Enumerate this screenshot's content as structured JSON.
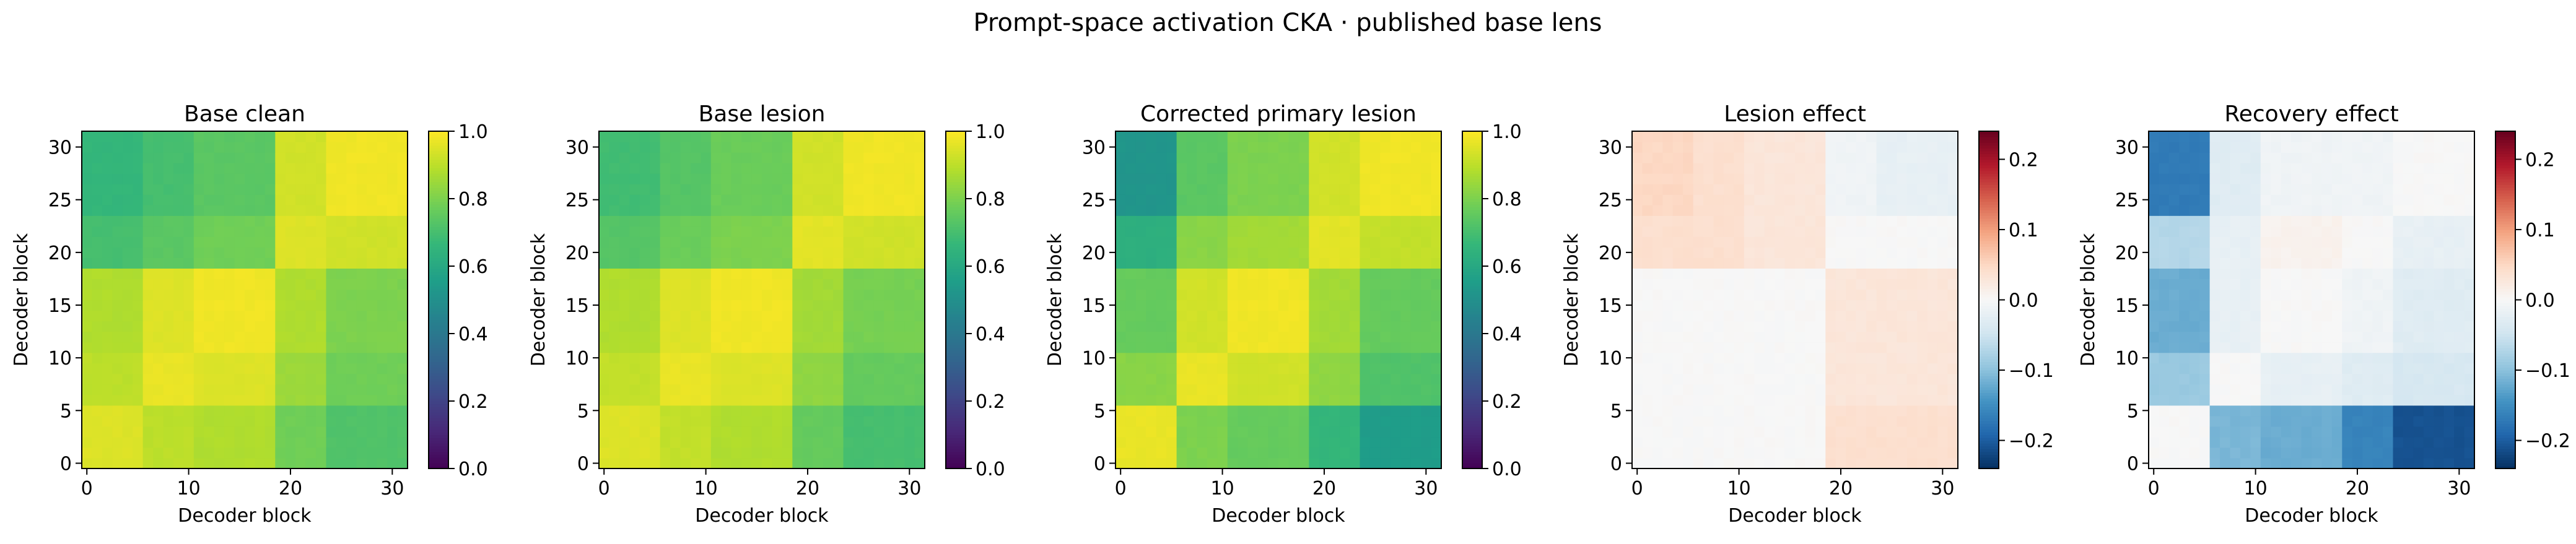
{
  "figure": {
    "suptitle": "Prompt-space activation CKA · published base lens"
  },
  "colormaps": {
    "viridis": [
      "#440154",
      "#482878",
      "#3e4a89",
      "#31688e",
      "#26828e",
      "#1f9e89",
      "#35b779",
      "#6ece58",
      "#b5de2b",
      "#fde725"
    ],
    "rdbu_r": [
      "#053061",
      "#2166ac",
      "#4393c3",
      "#92c5de",
      "#d1e5f0",
      "#f7f7f7",
      "#fddbc7",
      "#f4a582",
      "#d6604d",
      "#b2182b",
      "#67001f"
    ]
  },
  "chart_data": [
    {
      "type": "heatmap",
      "title": "Base clean",
      "xlabel": "Decoder block",
      "ylabel": "Decoder block",
      "n": 32,
      "cmap": "viridis",
      "vlim": [
        0,
        1
      ],
      "xticks": [
        0,
        10,
        20,
        30
      ],
      "yticks": [
        0,
        5,
        10,
        15,
        20,
        25,
        30
      ],
      "colorbar_ticks": [
        0.0,
        0.2,
        0.4,
        0.6,
        0.8,
        1.0
      ],
      "colorbar_ticklabels": [
        "0.0",
        "0.2",
        "0.4",
        "0.6",
        "0.8",
        "1.0"
      ],
      "block_bounds": [
        0,
        6,
        11,
        19,
        24,
        32
      ],
      "block_values": [
        [
          0.95,
          0.9,
          0.88,
          0.78,
          0.72
        ],
        [
          0.9,
          0.97,
          0.95,
          0.85,
          0.78
        ],
        [
          0.88,
          0.95,
          0.98,
          0.88,
          0.8
        ],
        [
          0.7,
          0.74,
          0.78,
          0.95,
          0.93
        ],
        [
          0.66,
          0.7,
          0.74,
          0.93,
          0.98
        ]
      ]
    },
    {
      "type": "heatmap",
      "title": "Base lesion",
      "xlabel": "Decoder block",
      "ylabel": "Decoder block",
      "n": 32,
      "cmap": "viridis",
      "vlim": [
        0,
        1
      ],
      "xticks": [
        0,
        10,
        20,
        30
      ],
      "yticks": [
        0,
        5,
        10,
        15,
        20,
        25,
        30
      ],
      "colorbar_ticks": [
        0.0,
        0.2,
        0.4,
        0.6,
        0.8,
        1.0
      ],
      "colorbar_ticklabels": [
        "0.0",
        "0.2",
        "0.4",
        "0.6",
        "0.8",
        "1.0"
      ],
      "block_bounds": [
        0,
        6,
        11,
        19,
        24,
        32
      ],
      "block_values": [
        [
          0.95,
          0.91,
          0.88,
          0.76,
          0.7
        ],
        [
          0.91,
          0.97,
          0.95,
          0.83,
          0.76
        ],
        [
          0.88,
          0.95,
          0.98,
          0.86,
          0.79
        ],
        [
          0.73,
          0.77,
          0.8,
          0.96,
          0.93
        ],
        [
          0.69,
          0.73,
          0.77,
          0.93,
          0.98
        ]
      ]
    },
    {
      "type": "heatmap",
      "title": "Corrected primary lesion",
      "xlabel": "Decoder block",
      "ylabel": "Decoder block",
      "n": 32,
      "cmap": "viridis",
      "vlim": [
        0,
        1
      ],
      "xticks": [
        0,
        10,
        20,
        30
      ],
      "yticks": [
        0,
        5,
        10,
        15,
        20,
        25,
        30
      ],
      "colorbar_ticks": [
        0.0,
        0.2,
        0.4,
        0.6,
        0.8,
        1.0
      ],
      "colorbar_ticklabels": [
        "0.0",
        "0.2",
        "0.4",
        "0.6",
        "0.8",
        "1.0"
      ],
      "block_bounds": [
        0,
        6,
        11,
        19,
        24,
        32
      ],
      "block_values": [
        [
          0.97,
          0.8,
          0.76,
          0.66,
          0.55
        ],
        [
          0.82,
          0.97,
          0.93,
          0.83,
          0.72
        ],
        [
          0.76,
          0.93,
          0.98,
          0.86,
          0.76
        ],
        [
          0.63,
          0.82,
          0.86,
          0.96,
          0.91
        ],
        [
          0.52,
          0.74,
          0.8,
          0.93,
          0.98
        ]
      ]
    },
    {
      "type": "heatmap",
      "title": "Lesion effect",
      "xlabel": "Decoder block",
      "ylabel": "Decoder block",
      "n": 32,
      "cmap": "rdbu_r",
      "vlim": [
        -0.24,
        0.24
      ],
      "xticks": [
        0,
        10,
        20,
        30
      ],
      "yticks": [
        0,
        5,
        10,
        15,
        20,
        25,
        30
      ],
      "colorbar_ticks": [
        -0.2,
        -0.1,
        0.0,
        0.1,
        0.2
      ],
      "colorbar_ticklabels": [
        "−0.2",
        "−0.1",
        "0.0",
        "0.1",
        "0.2"
      ],
      "block_bounds": [
        0,
        6,
        11,
        19,
        24,
        32
      ],
      "block_values": [
        [
          0.0,
          0.0,
          0.0,
          0.04,
          0.04
        ],
        [
          0.0,
          0.0,
          0.0,
          0.03,
          0.03
        ],
        [
          0.0,
          0.0,
          0.0,
          0.03,
          0.03
        ],
        [
          0.04,
          0.04,
          0.03,
          0.0,
          0.0
        ],
        [
          0.05,
          0.04,
          0.03,
          -0.01,
          -0.02
        ]
      ]
    },
    {
      "type": "heatmap",
      "title": "Recovery effect",
      "xlabel": "Decoder block",
      "ylabel": "Decoder block",
      "n": 32,
      "cmap": "rdbu_r",
      "vlim": [
        -0.24,
        0.24
      ],
      "xticks": [
        0,
        10,
        20,
        30
      ],
      "yticks": [
        0,
        5,
        10,
        15,
        20,
        25,
        30
      ],
      "colorbar_ticks": [
        -0.2,
        -0.1,
        0.0,
        0.1,
        0.2
      ],
      "colorbar_ticklabels": [
        "−0.2",
        "−0.1",
        "0.0",
        "0.1",
        "0.2"
      ],
      "block_bounds": [
        0,
        6,
        11,
        19,
        24,
        32
      ],
      "block_values": [
        [
          0.0,
          -0.11,
          -0.12,
          -0.16,
          -0.21
        ],
        [
          -0.09,
          0.0,
          -0.02,
          -0.03,
          -0.04
        ],
        [
          -0.12,
          -0.02,
          0.0,
          -0.01,
          -0.03
        ],
        [
          -0.07,
          -0.02,
          0.01,
          0.0,
          -0.02
        ],
        [
          -0.17,
          -0.03,
          -0.01,
          -0.01,
          0.0
        ]
      ]
    }
  ]
}
